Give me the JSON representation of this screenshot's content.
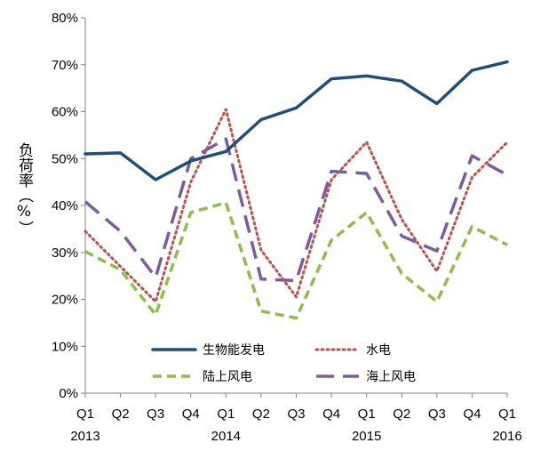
{
  "chart_data": {
    "type": "line",
    "title": "",
    "ylabel": "负荷率（%）",
    "xlabel": "",
    "ylim": [
      0,
      80
    ],
    "yticks": [
      "0%",
      "10%",
      "20%",
      "30%",
      "40%",
      "50%",
      "60%",
      "70%",
      "80%"
    ],
    "categories": [
      "Q1",
      "Q2",
      "Q3",
      "Q4",
      "Q1",
      "Q2",
      "Q3",
      "Q4",
      "Q1",
      "Q2",
      "Q3",
      "Q4",
      "Q1"
    ],
    "year_labels": [
      {
        "index": 0,
        "label": "2013"
      },
      {
        "index": 4,
        "label": "2014"
      },
      {
        "index": 8,
        "label": "2015"
      },
      {
        "index": 12,
        "label": "2016"
      }
    ],
    "grid": false,
    "legend_position": "bottom-center",
    "series": [
      {
        "name": "生物能发电",
        "color": "#1f4e79",
        "style": "solid",
        "values": [
          51,
          51.2,
          45.5,
          49.5,
          51.5,
          58.3,
          60.8,
          67,
          67.6,
          66.5,
          61.7,
          68.8,
          70.6
        ]
      },
      {
        "name": "水电",
        "color": "#c0504d",
        "style": "dotted",
        "values": [
          34.5,
          27,
          19.5,
          45,
          60.5,
          30.5,
          20.5,
          45.5,
          53.5,
          37,
          26,
          46,
          53.5
        ]
      },
      {
        "name": "陆上风电",
        "color": "#8fbc4a",
        "style": "dashed",
        "values": [
          30.2,
          26.3,
          16.7,
          38.5,
          40.6,
          17.5,
          16,
          32.6,
          38.5,
          25.5,
          19.5,
          35.5,
          31.6
        ]
      },
      {
        "name": "海上风电",
        "color": "#7b5c9e",
        "style": "longdash",
        "values": [
          40.8,
          34.5,
          24.7,
          50,
          54.2,
          24.3,
          24,
          47.3,
          46.8,
          33.5,
          30.3,
          50.6,
          46.5
        ]
      }
    ]
  }
}
